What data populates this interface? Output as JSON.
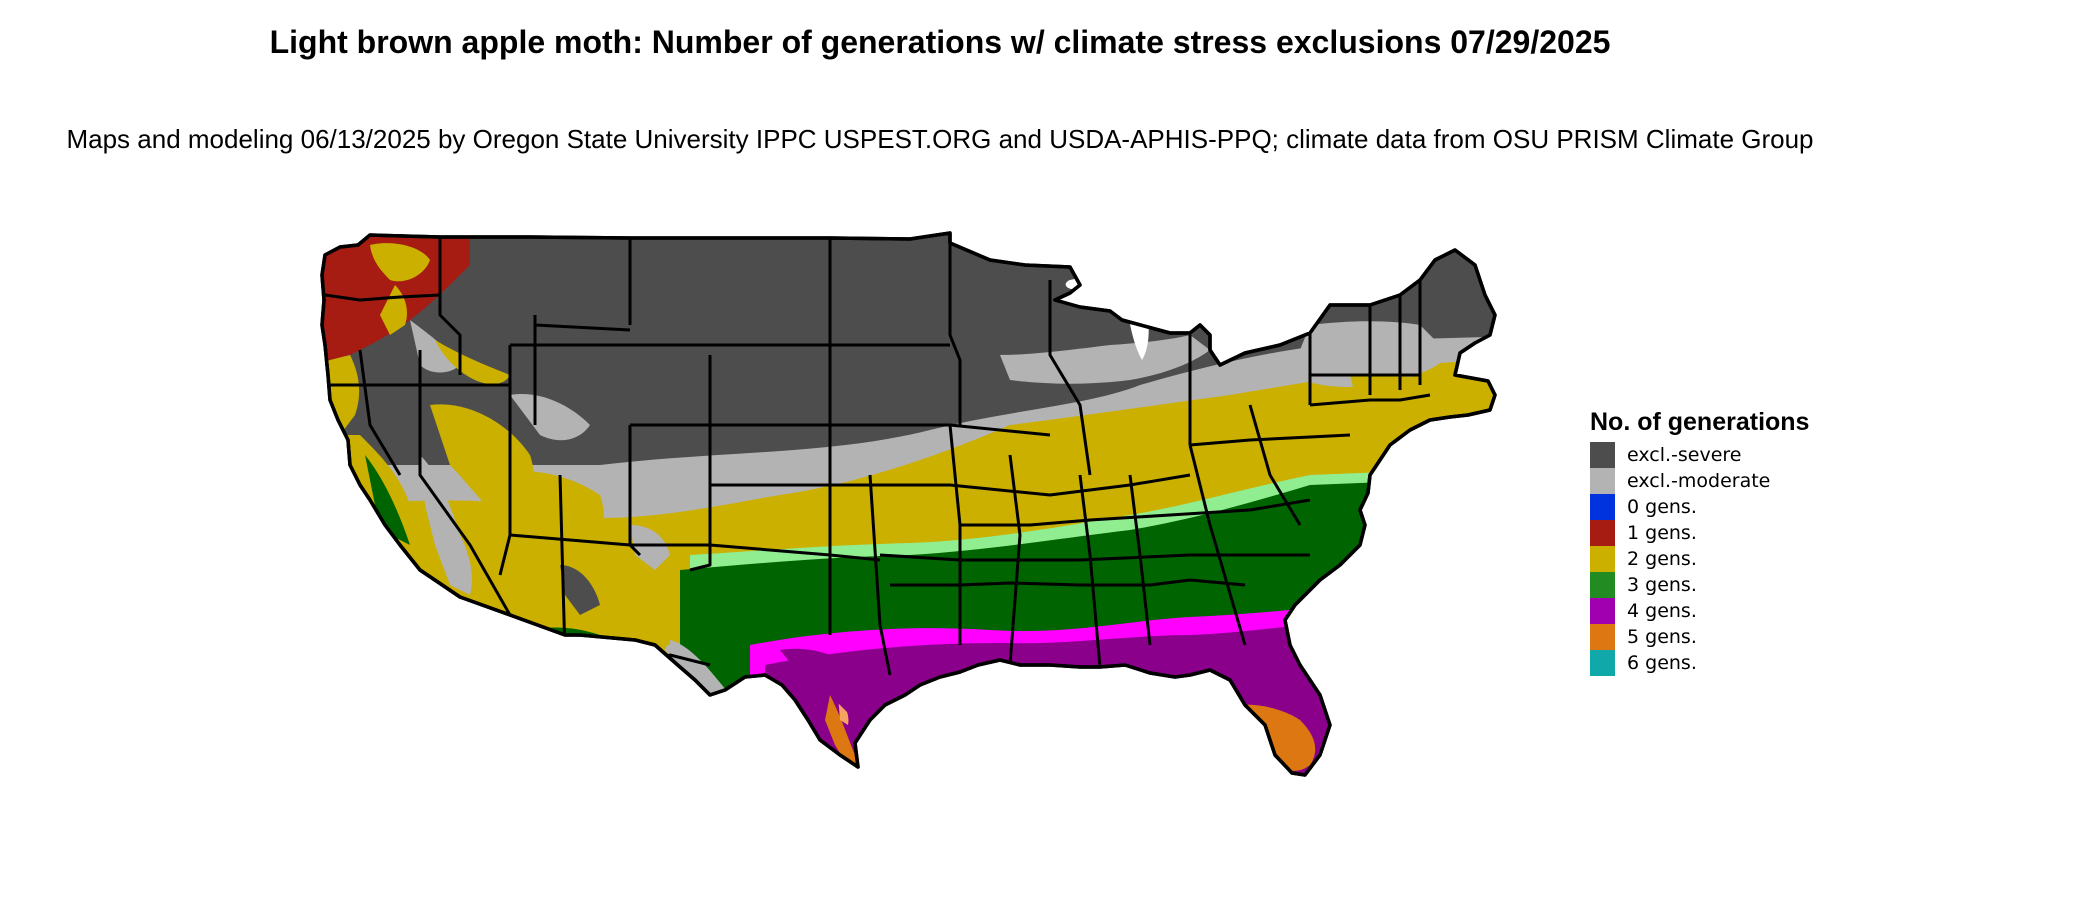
{
  "title": "Light brown apple moth: Number of generations w/ climate stress exclusions 07/29/2025",
  "subtitle": "Maps and modeling 06/13/2025 by Oregon State University IPPC USPEST.ORG and USDA-APHIS-PPQ; climate data from OSU PRISM Climate Group",
  "legend": {
    "title": "No. of generations",
    "items": [
      {
        "label": "excl.-severe",
        "color": "#4d4d4d"
      },
      {
        "label": "excl.-moderate",
        "color": "#b3b3b3"
      },
      {
        "label": "0 gens.",
        "color": "#0033dd"
      },
      {
        "label": "1 gens.",
        "color": "#a61c12"
      },
      {
        "label": "2 gens.",
        "color": "#ccb000"
      },
      {
        "label": "3 gens.",
        "color": "#228b22"
      },
      {
        "label": "4 gens.",
        "color": "#a000b0"
      },
      {
        "label": "5 gens.",
        "color": "#dd7711"
      },
      {
        "label": "6 gens.",
        "color": "#10a8a8"
      }
    ]
  },
  "map_colors": {
    "severe": "#4d4d4d",
    "moderate": "#b3b3b3",
    "gen1": "#a61c12",
    "gen2": "#ccb000",
    "gen3": "#006400",
    "gen3_light": "#90ee90",
    "gen4": "#8b008b",
    "gen4_bright": "#ff00ff",
    "gen5": "#dd7711",
    "gen5_light": "#f4a460",
    "border": "#000000",
    "water": "#ffffff"
  }
}
